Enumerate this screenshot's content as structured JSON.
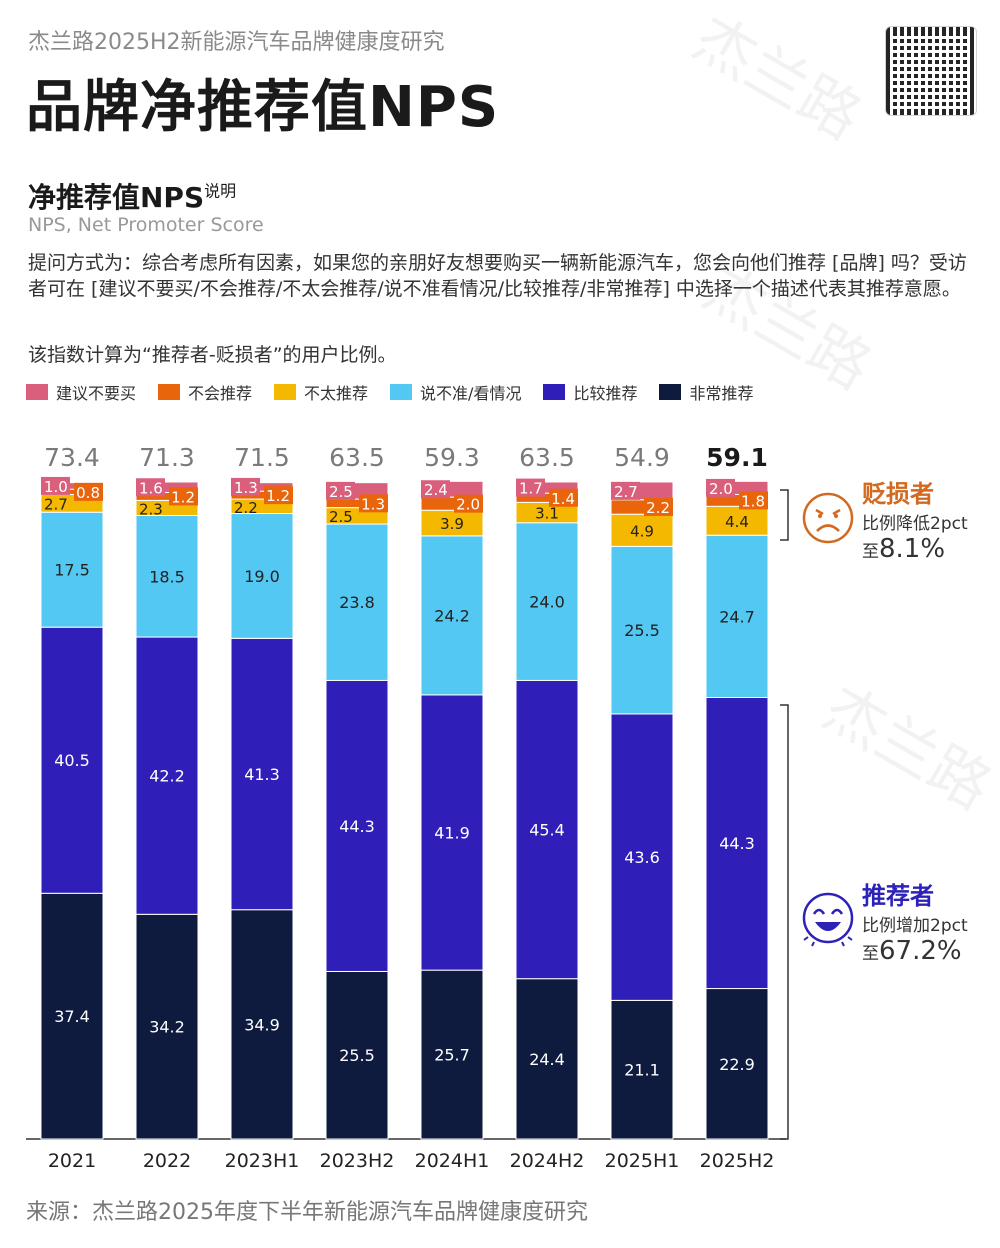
{
  "header": {
    "supertitle": "杰兰路2025H2新能源汽车品牌健康度研究",
    "title": "品牌净推荐值NPS"
  },
  "section": {
    "title": "净推荐值NPS",
    "title_sup": "说明",
    "subtitle": "NPS, Net Promoter Score",
    "description": "提问方式为：综合考虑所有因素，如果您的亲朋好友想要购买一辆新能源汽车，您会向他们推荐 [品牌] 吗？受访者可在 [建议不要买/不会推荐/不太会推荐/说不准看情况/比较推荐/非常推荐] 中选择一个描述代表其推荐意愿。",
    "formula": "该指数计算为“推荐者-贬损者”的用户比例。"
  },
  "chart_data": {
    "type": "bar",
    "stacked": true,
    "categories": [
      "2021",
      "2022",
      "2023H1",
      "2023H2",
      "2024H1",
      "2024H2",
      "2025H1",
      "2025H2"
    ],
    "nps": [
      "73.4",
      "71.3",
      "71.5",
      "63.5",
      "59.3",
      "63.5",
      "54.9",
      "59.1"
    ],
    "ylim": [
      0,
      100
    ],
    "series": [
      {
        "name": "非常推荐",
        "color": "#0e1b3f",
        "values": [
          37.4,
          34.2,
          34.9,
          25.5,
          25.7,
          24.4,
          21.1,
          22.9
        ]
      },
      {
        "name": "比较推荐",
        "color": "#2f1fb8",
        "values": [
          40.5,
          42.2,
          41.3,
          44.3,
          41.9,
          45.4,
          43.6,
          44.3
        ]
      },
      {
        "name": "说不准/看情况",
        "color": "#52c8f3",
        "values": [
          17.5,
          18.5,
          19.0,
          23.8,
          24.2,
          24.0,
          25.5,
          24.7
        ]
      },
      {
        "name": "不太推荐",
        "color": "#f5b800",
        "values": [
          2.7,
          2.3,
          2.2,
          2.5,
          3.9,
          3.1,
          4.9,
          4.4
        ]
      },
      {
        "name": "不会推荐",
        "color": "#e8650c",
        "values": [
          0.8,
          1.2,
          1.2,
          1.3,
          2.0,
          1.4,
          2.2,
          1.8
        ]
      },
      {
        "name": "建议不要买",
        "color": "#d95f7c",
        "values": [
          1.0,
          1.6,
          1.3,
          2.5,
          2.4,
          1.7,
          2.7,
          2.0
        ]
      }
    ],
    "legend_order": [
      "建议不要买",
      "不会推荐",
      "不太推荐",
      "说不准/看情况",
      "比较推荐",
      "非常推荐"
    ],
    "legend_position": "top",
    "annotations": {
      "detractors": {
        "title": "贬损者",
        "change": "比例降低2pct",
        "prefix": "至",
        "value": "8.1%",
        "color": "#d2691e",
        "icon": "angry-face-icon"
      },
      "promoters": {
        "title": "推荐者",
        "change": "比例增加2pct",
        "prefix": "至",
        "value": "67.2%",
        "color": "#2d22b8",
        "icon": "laughing-face-icon"
      }
    }
  },
  "footer": {
    "source": "来源：杰兰路2025年度下半年新能源汽车品牌健康度研究"
  },
  "watermark": "杰兰路 LandRoads"
}
